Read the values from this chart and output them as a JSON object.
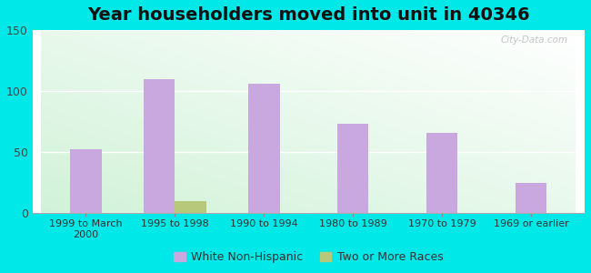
{
  "title": "Year householders moved into unit in 40346",
  "categories": [
    "1999 to March\n2000",
    "1995 to 1998",
    "1990 to 1994",
    "1980 to 1989",
    "1970 to 1979",
    "1969 or earlier"
  ],
  "white_non_hispanic": [
    52,
    110,
    106,
    73,
    66,
    25
  ],
  "two_or_more_races": [
    0,
    10,
    0,
    0,
    0,
    0
  ],
  "bar_color_white": "#c9a8e0",
  "bar_color_two": "#b8c87a",
  "background_outer": "#00e8e8",
  "ylim": [
    0,
    150
  ],
  "yticks": [
    0,
    50,
    100,
    150
  ],
  "legend_labels": [
    "White Non-Hispanic",
    "Two or More Races"
  ],
  "title_fontsize": 14,
  "bar_width": 0.35,
  "watermark": "City-Data.com"
}
